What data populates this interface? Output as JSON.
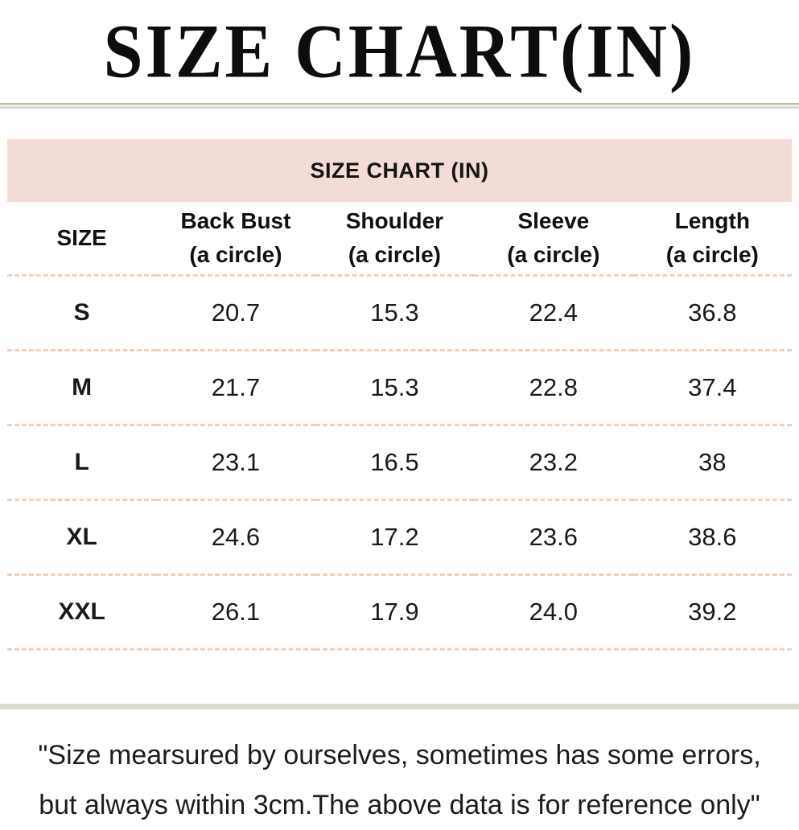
{
  "header": {
    "title": "SIZE CHART(IN)"
  },
  "table": {
    "banner": "SIZE CHART (IN)",
    "columns": [
      {
        "label": "SIZE",
        "sub": ""
      },
      {
        "label": "Back Bust",
        "sub": "(a circle)"
      },
      {
        "label": "Shoulder",
        "sub": "(a circle)"
      },
      {
        "label": "Sleeve",
        "sub": "(a circle)"
      },
      {
        "label": "Length",
        "sub": "(a circle)"
      }
    ],
    "rows": [
      {
        "size": "S",
        "values": [
          "20.7",
          "15.3",
          "22.4",
          "36.8"
        ]
      },
      {
        "size": "M",
        "values": [
          "21.7",
          "15.3",
          "22.8",
          "37.4"
        ]
      },
      {
        "size": "L",
        "values": [
          "23.1",
          "16.5",
          "23.2",
          "38"
        ]
      },
      {
        "size": "XL",
        "values": [
          "24.6",
          "17.2",
          "23.6",
          "38.6"
        ]
      },
      {
        "size": "XXL",
        "values": [
          "26.1",
          "17.9",
          "24.0",
          "39.2"
        ]
      }
    ]
  },
  "footnote": {
    "line1": "\"Size mearsured by ourselves, sometimes has some errors,",
    "line2": "but always within 3cm.The above data is for reference only\""
  },
  "colors": {
    "banner_bg": "#f3dcd6",
    "dashed_separator": "#efd0bd",
    "solid_separator": "#dcd8ca",
    "text": "#141414"
  },
  "chart_data": {
    "type": "table",
    "title": "SIZE CHART (IN)",
    "columns": [
      "SIZE",
      "Back Bust (a circle)",
      "Shoulder (a circle)",
      "Sleeve (a circle)",
      "Length (a circle)"
    ],
    "rows": [
      [
        "S",
        20.7,
        15.3,
        22.4,
        36.8
      ],
      [
        "M",
        21.7,
        15.3,
        22.8,
        37.4
      ],
      [
        "L",
        23.1,
        16.5,
        23.2,
        38.0
      ],
      [
        "XL",
        24.6,
        17.2,
        23.6,
        38.6
      ],
      [
        "XXL",
        26.1,
        17.9,
        24.0,
        39.2
      ]
    ]
  }
}
